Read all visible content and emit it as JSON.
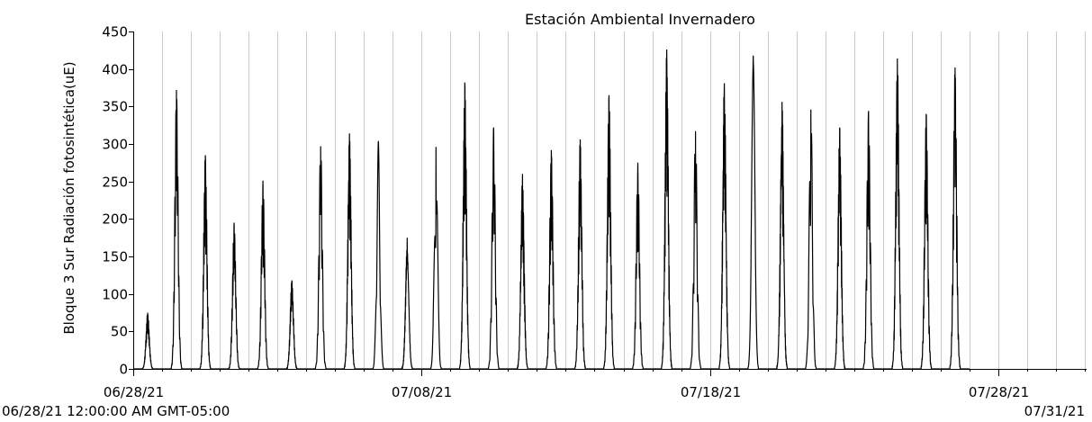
{
  "chart_data": {
    "type": "line",
    "title": "Estación Ambiental Invernadero",
    "ylabel": "Bloque 3 Sur Radiación fotosintética(uE)",
    "xlabel": "",
    "ylim": [
      0,
      450
    ],
    "yticks": [
      0,
      50,
      100,
      150,
      200,
      250,
      300,
      350,
      400,
      450
    ],
    "xlim": [
      "06/28/21",
      "07/31/21"
    ],
    "xticks": [
      "06/28/21",
      "07/08/21",
      "07/18/21",
      "07/28/21"
    ],
    "grid": "vertical-daily",
    "range_start_label": "06/28/21 12:00:00 AM GMT-05:00",
    "range_end_label": "07/31/21",
    "series_color": "#000000",
    "daily_peaks": [
      {
        "date": "06/28/21",
        "peak": 75
      },
      {
        "date": "06/29/21",
        "peak": 372
      },
      {
        "date": "06/30/21",
        "peak": 285
      },
      {
        "date": "07/01/21",
        "peak": 195
      },
      {
        "date": "07/02/21",
        "peak": 251
      },
      {
        "date": "07/03/21",
        "peak": 118
      },
      {
        "date": "07/04/21",
        "peak": 297
      },
      {
        "date": "07/05/21",
        "peak": 314
      },
      {
        "date": "07/06/21",
        "peak": 304
      },
      {
        "date": "07/07/21",
        "peak": 175
      },
      {
        "date": "07/08/21",
        "peak": 296
      },
      {
        "date": "07/09/21",
        "peak": 382
      },
      {
        "date": "07/10/21",
        "peak": 322
      },
      {
        "date": "07/11/21",
        "peak": 260
      },
      {
        "date": "07/12/21",
        "peak": 292
      },
      {
        "date": "07/13/21",
        "peak": 306
      },
      {
        "date": "07/14/21",
        "peak": 365
      },
      {
        "date": "07/15/21",
        "peak": 275
      },
      {
        "date": "07/16/21",
        "peak": 426
      },
      {
        "date": "07/17/21",
        "peak": 317
      },
      {
        "date": "07/18/21",
        "peak": 381
      },
      {
        "date": "07/19/21",
        "peak": 418
      },
      {
        "date": "07/20/21",
        "peak": 356
      },
      {
        "date": "07/21/21",
        "peak": 346
      },
      {
        "date": "07/22/21",
        "peak": 322
      },
      {
        "date": "07/23/21",
        "peak": 344
      },
      {
        "date": "07/24/21",
        "peak": 414
      },
      {
        "date": "07/25/21",
        "peak": 340
      },
      {
        "date": "07/26/21",
        "peak": 402
      }
    ]
  }
}
